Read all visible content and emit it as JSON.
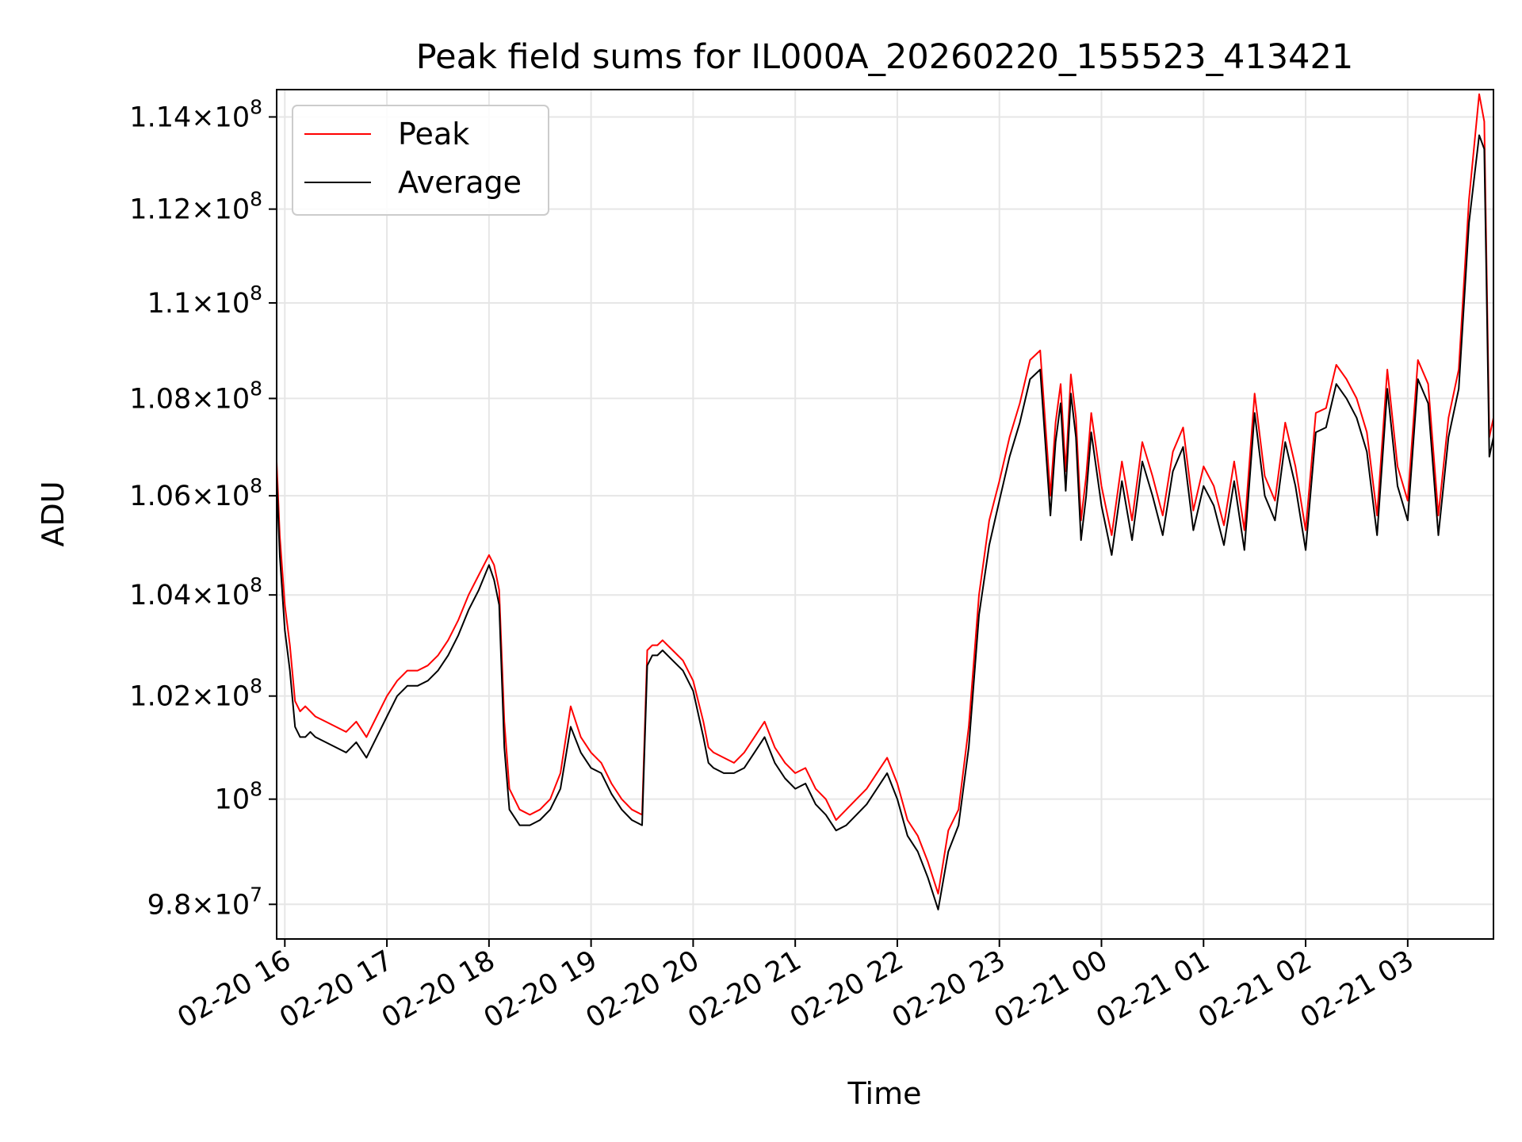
{
  "chart_data": {
    "type": "line",
    "title": "Peak field sums for IL000A_20260220_155523_413421",
    "xlabel": "Time",
    "ylabel": "ADU",
    "yscale": "log",
    "grid": true,
    "legend_position": "top-left",
    "xlim": [
      15.92,
      27.84
    ],
    "ylim": [
      97350000,
      114600000
    ],
    "x_axis_note": "x values are hours since 2026-02-20 00:00",
    "x_ticks": [
      {
        "value": 16,
        "label": "02-20 16"
      },
      {
        "value": 17,
        "label": "02-20 17"
      },
      {
        "value": 18,
        "label": "02-20 18"
      },
      {
        "value": 19,
        "label": "02-20 19"
      },
      {
        "value": 20,
        "label": "02-20 20"
      },
      {
        "value": 21,
        "label": "02-20 21"
      },
      {
        "value": 22,
        "label": "02-20 22"
      },
      {
        "value": 23,
        "label": "02-20 23"
      },
      {
        "value": 24,
        "label": "02-21 00"
      },
      {
        "value": 25,
        "label": "02-21 01"
      },
      {
        "value": 26,
        "label": "02-21 02"
      },
      {
        "value": 27,
        "label": "02-21 03"
      }
    ],
    "y_ticks": [
      {
        "value": 98000000,
        "mantissa": "9.8",
        "exponent": "7"
      },
      {
        "value": 100000000,
        "mantissa": "",
        "exponent": "8"
      },
      {
        "value": 102000000,
        "mantissa": "1.02",
        "exponent": "8"
      },
      {
        "value": 104000000,
        "mantissa": "1.04",
        "exponent": "8"
      },
      {
        "value": 106000000,
        "mantissa": "1.06",
        "exponent": "8"
      },
      {
        "value": 108000000,
        "mantissa": "1.08",
        "exponent": "8"
      },
      {
        "value": 110000000,
        "mantissa": "1.1",
        "exponent": "8"
      },
      {
        "value": 112000000,
        "mantissa": "1.12",
        "exponent": "8"
      },
      {
        "value": 114000000,
        "mantissa": "1.14",
        "exponent": "8"
      }
    ],
    "series": [
      {
        "name": "Peak",
        "color": "#ff0000",
        "x": [
          15.92,
          15.95,
          16.0,
          16.05,
          16.1,
          16.15,
          16.2,
          16.25,
          16.3,
          16.4,
          16.5,
          16.6,
          16.7,
          16.8,
          16.9,
          17.0,
          17.1,
          17.2,
          17.3,
          17.4,
          17.5,
          17.6,
          17.7,
          17.8,
          17.9,
          18.0,
          18.05,
          18.1,
          18.15,
          18.2,
          18.3,
          18.4,
          18.5,
          18.6,
          18.7,
          18.8,
          18.9,
          19.0,
          19.1,
          19.2,
          19.3,
          19.4,
          19.5,
          19.55,
          19.6,
          19.65,
          19.7,
          19.8,
          19.9,
          20.0,
          20.1,
          20.15,
          20.2,
          20.3,
          20.4,
          20.5,
          20.6,
          20.7,
          20.8,
          20.9,
          21.0,
          21.1,
          21.2,
          21.3,
          21.4,
          21.5,
          21.6,
          21.7,
          21.8,
          21.9,
          22.0,
          22.1,
          22.2,
          22.3,
          22.4,
          22.5,
          22.6,
          22.7,
          22.8,
          22.9,
          23.0,
          23.1,
          23.2,
          23.3,
          23.4,
          23.5,
          23.55,
          23.6,
          23.65,
          23.7,
          23.75,
          23.8,
          23.85,
          23.9,
          24.0,
          24.1,
          24.2,
          24.3,
          24.4,
          24.5,
          24.6,
          24.7,
          24.8,
          24.9,
          25.0,
          25.1,
          25.2,
          25.3,
          25.4,
          25.5,
          25.6,
          25.7,
          25.8,
          25.9,
          26.0,
          26.1,
          26.2,
          26.3,
          26.4,
          26.5,
          26.6,
          26.7,
          26.8,
          26.9,
          27.0,
          27.1,
          27.2,
          27.3,
          27.4,
          27.5,
          27.6,
          27.7,
          27.75,
          27.8,
          27.84
        ],
        "y": [
          106700000,
          105200000,
          103800000,
          103000000,
          101900000,
          101700000,
          101800000,
          101700000,
          101600000,
          101500000,
          101400000,
          101300000,
          101500000,
          101200000,
          101600000,
          102000000,
          102300000,
          102500000,
          102500000,
          102600000,
          102800000,
          103100000,
          103500000,
          104000000,
          104400000,
          104800000,
          104600000,
          104100000,
          101500000,
          100200000,
          99800000,
          99700000,
          99800000,
          100000000,
          100500000,
          101800000,
          101200000,
          100900000,
          100700000,
          100300000,
          100000000,
          99800000,
          99700000,
          102900000,
          103000000,
          103000000,
          103100000,
          102900000,
          102700000,
          102300000,
          101500000,
          101000000,
          100900000,
          100800000,
          100700000,
          100900000,
          101200000,
          101500000,
          101000000,
          100700000,
          100500000,
          100600000,
          100200000,
          100000000,
          99600000,
          99800000,
          100000000,
          100200000,
          100500000,
          100800000,
          100300000,
          99600000,
          99300000,
          98800000,
          98200000,
          99400000,
          99800000,
          101400000,
          104000000,
          105500000,
          106300000,
          107200000,
          107900000,
          108800000,
          109000000,
          106000000,
          107500000,
          108300000,
          106500000,
          108500000,
          107600000,
          105500000,
          106400000,
          107700000,
          106200000,
          105200000,
          106700000,
          105500000,
          107100000,
          106400000,
          105600000,
          106900000,
          107400000,
          105700000,
          106600000,
          106200000,
          105400000,
          106700000,
          105300000,
          108100000,
          106400000,
          105900000,
          107500000,
          106600000,
          105300000,
          107700000,
          107800000,
          108700000,
          108400000,
          108000000,
          107300000,
          105600000,
          108600000,
          106600000,
          105900000,
          108800000,
          108300000,
          105600000,
          107600000,
          108600000,
          112200000,
          114500000,
          113900000,
          107200000,
          107600000
        ]
      },
      {
        "name": "Average",
        "color": "#000000",
        "x": [
          15.92,
          15.95,
          16.0,
          16.05,
          16.1,
          16.15,
          16.2,
          16.25,
          16.3,
          16.4,
          16.5,
          16.6,
          16.7,
          16.8,
          16.9,
          17.0,
          17.1,
          17.2,
          17.3,
          17.4,
          17.5,
          17.6,
          17.7,
          17.8,
          17.9,
          18.0,
          18.05,
          18.1,
          18.15,
          18.2,
          18.3,
          18.4,
          18.5,
          18.6,
          18.7,
          18.8,
          18.9,
          19.0,
          19.1,
          19.2,
          19.3,
          19.4,
          19.5,
          19.55,
          19.6,
          19.65,
          19.7,
          19.8,
          19.9,
          20.0,
          20.1,
          20.15,
          20.2,
          20.3,
          20.4,
          20.5,
          20.6,
          20.7,
          20.8,
          20.9,
          21.0,
          21.1,
          21.2,
          21.3,
          21.4,
          21.5,
          21.6,
          21.7,
          21.8,
          21.9,
          22.0,
          22.1,
          22.2,
          22.3,
          22.4,
          22.5,
          22.6,
          22.7,
          22.8,
          22.9,
          23.0,
          23.1,
          23.2,
          23.3,
          23.4,
          23.5,
          23.55,
          23.6,
          23.65,
          23.7,
          23.75,
          23.8,
          23.85,
          23.9,
          24.0,
          24.1,
          24.2,
          24.3,
          24.4,
          24.5,
          24.6,
          24.7,
          24.8,
          24.9,
          25.0,
          25.1,
          25.2,
          25.3,
          25.4,
          25.5,
          25.6,
          25.7,
          25.8,
          25.9,
          26.0,
          26.1,
          26.2,
          26.3,
          26.4,
          26.5,
          26.6,
          26.7,
          26.8,
          26.9,
          27.0,
          27.1,
          27.2,
          27.3,
          27.4,
          27.5,
          27.6,
          27.7,
          27.75,
          27.8,
          27.84
        ],
        "y": [
          106400000,
          104800000,
          103300000,
          102500000,
          101400000,
          101200000,
          101200000,
          101300000,
          101200000,
          101100000,
          101000000,
          100900000,
          101100000,
          100800000,
          101200000,
          101600000,
          102000000,
          102200000,
          102200000,
          102300000,
          102500000,
          102800000,
          103200000,
          103700000,
          104100000,
          104600000,
          104300000,
          103800000,
          101000000,
          99800000,
          99500000,
          99500000,
          99600000,
          99800000,
          100200000,
          101400000,
          100900000,
          100600000,
          100500000,
          100100000,
          99800000,
          99600000,
          99500000,
          102600000,
          102800000,
          102800000,
          102900000,
          102700000,
          102500000,
          102100000,
          101200000,
          100700000,
          100600000,
          100500000,
          100500000,
          100600000,
          100900000,
          101200000,
          100700000,
          100400000,
          100200000,
          100300000,
          99900000,
          99700000,
          99400000,
          99500000,
          99700000,
          99900000,
          100200000,
          100500000,
          100000000,
          99300000,
          99000000,
          98500000,
          97900000,
          99000000,
          99500000,
          101000000,
          103600000,
          105000000,
          105900000,
          106800000,
          107500000,
          108400000,
          108600000,
          105600000,
          107100000,
          107900000,
          106100000,
          108100000,
          107200000,
          105100000,
          106000000,
          107300000,
          105800000,
          104800000,
          106300000,
          105100000,
          106700000,
          106000000,
          105200000,
          106500000,
          107000000,
          105300000,
          106200000,
          105800000,
          105000000,
          106300000,
          104900000,
          107700000,
          106000000,
          105500000,
          107100000,
          106200000,
          104900000,
          107300000,
          107400000,
          108300000,
          108000000,
          107600000,
          106900000,
          105200000,
          108200000,
          106200000,
          105500000,
          108400000,
          107900000,
          105200000,
          107200000,
          108200000,
          111700000,
          113600000,
          113300000,
          106800000,
          107200000
        ]
      }
    ]
  }
}
